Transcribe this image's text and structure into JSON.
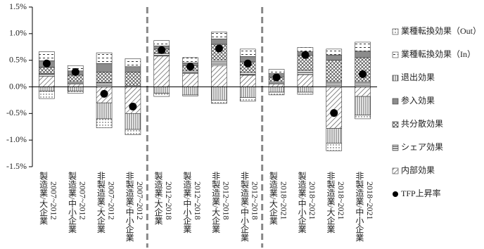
{
  "chart_data": {
    "type": "stacked_bar",
    "categories": [
      {
        "group": "製造業/大企業",
        "period": "2007~2012"
      },
      {
        "group": "製造業/中小企業",
        "period": "2007~2012"
      },
      {
        "group": "非製造業/大企業",
        "period": "2007~2012"
      },
      {
        "group": "非製造業/中小企業",
        "period": "2007~2012"
      },
      {
        "group": "製造業/大企業",
        "period": "2012~2018"
      },
      {
        "group": "製造業/中小企業",
        "period": "2012~2018"
      },
      {
        "group": "非製造業/大企業",
        "period": "2012~2018"
      },
      {
        "group": "非製造業/中小企業",
        "period": "2012~2018"
      },
      {
        "group": "製造業/大企業",
        "period": "2018~2021"
      },
      {
        "group": "製造業/中小企業",
        "period": "2018~2021"
      },
      {
        "group": "非製造業/大企業",
        "period": "2018~2021"
      },
      {
        "group": "非製造業/中小企業",
        "period": "2018~2021"
      }
    ],
    "series": [
      {
        "name": "内部効果",
        "color": "#555555",
        "pattern": "diagonal",
        "values": [
          0.2,
          0.05,
          -0.3,
          -0.5,
          0.58,
          0.25,
          0.4,
          0.22,
          0.05,
          0.23,
          -0.78,
          -0.18
        ]
      },
      {
        "name": "シェア効果",
        "color": "#333333",
        "pattern": "horizontal",
        "values": [
          0.05,
          0.05,
          0.08,
          0.02,
          0.05,
          0.05,
          0.1,
          0.05,
          0.05,
          0.08,
          0.1,
          0.1
        ]
      },
      {
        "name": "共分散効果",
        "color": "#444444",
        "pattern": "cross",
        "values": [
          0.12,
          0.12,
          0.2,
          0.26,
          0.08,
          0.1,
          0.3,
          0.2,
          0.08,
          0.28,
          0.4,
          0.45
        ]
      },
      {
        "name": "参入効果",
        "color": "#8c8c8c",
        "pattern": "solid",
        "values": [
          0.12,
          0.08,
          0.16,
          0.1,
          0.06,
          0.05,
          0.1,
          0.1,
          0.07,
          0.07,
          0.1,
          0.12
        ]
      },
      {
        "name": "退出効果",
        "color": "#555555",
        "pattern": "vertical",
        "values": [
          -0.08,
          -0.08,
          -0.3,
          -0.3,
          -0.12,
          -0.15,
          -0.25,
          -0.2,
          -0.1,
          -0.1,
          -0.28,
          -0.35
        ]
      },
      {
        "name": "業種転換効果（In）",
        "color": "#333333",
        "pattern": "dash",
        "values": [
          0.17,
          0.1,
          0.2,
          0.15,
          0.1,
          0.1,
          0.13,
          0.14,
          0.08,
          0.08,
          0.11,
          0.17
        ]
      },
      {
        "name": "業種転換効果（Out）",
        "color": "#333333",
        "pattern": "dots",
        "values": [
          -0.14,
          -0.04,
          -0.17,
          -0.1,
          -0.06,
          -0.02,
          -0.06,
          -0.07,
          -0.05,
          -0.04,
          -0.14,
          -0.07
        ]
      }
    ],
    "tfp": {
      "name": "TFP上昇率",
      "color": "#000000",
      "values": [
        0.44,
        0.28,
        -0.13,
        -0.37,
        0.69,
        0.38,
        0.72,
        0.44,
        0.18,
        0.6,
        -0.49,
        0.24
      ]
    },
    "group_size": 4,
    "ylim": [
      -1.5,
      1.5
    ],
    "yticks": [
      {
        "value": -1.5,
        "label": "-1.5%"
      },
      {
        "value": -1.0,
        "label": "-1.0%"
      },
      {
        "value": -0.5,
        "label": "-0.5%"
      },
      {
        "value": 0,
        "label": "0.0%"
      },
      {
        "value": 0.5,
        "label": "0.5%"
      },
      {
        "value": 1.0,
        "label": "1.0%"
      },
      {
        "value": 1.5,
        "label": "1.5%"
      }
    ],
    "grid": false
  }
}
